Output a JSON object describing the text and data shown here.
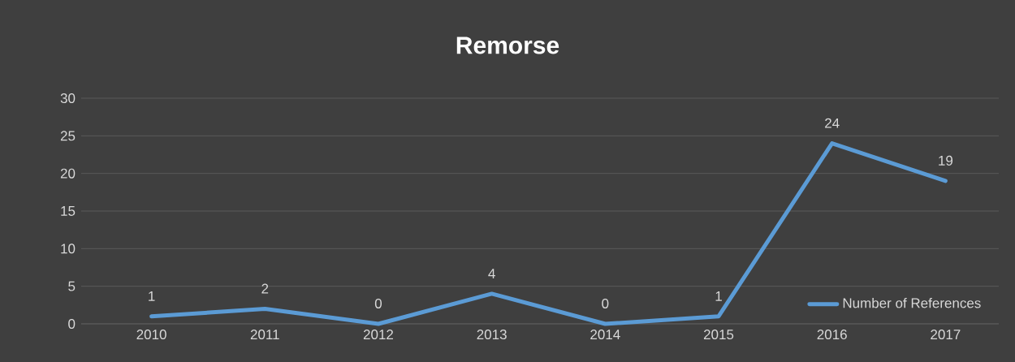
{
  "chart_data": {
    "type": "line",
    "title": "Remorse",
    "categories": [
      "2010",
      "2011",
      "2012",
      "2013",
      "2014",
      "2015",
      "2016",
      "2017"
    ],
    "series": [
      {
        "name": "Number of References",
        "color": "#5b9bd5",
        "values": [
          1,
          2,
          0,
          4,
          0,
          1,
          24,
          19
        ]
      }
    ],
    "ylim": [
      0,
      30
    ],
    "yticks": [
      0,
      5,
      10,
      15,
      20,
      25,
      30
    ],
    "grid": "y",
    "legend": "bottom right",
    "data_labels": true
  }
}
